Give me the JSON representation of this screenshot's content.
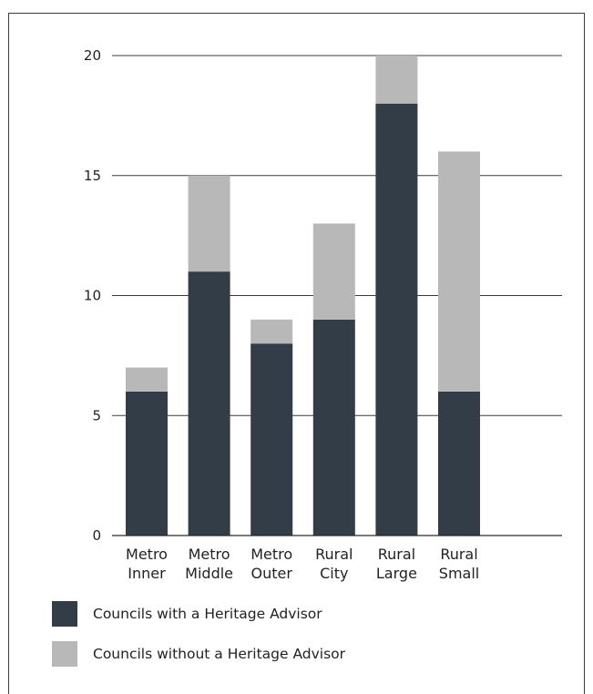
{
  "chart_data": {
    "type": "bar",
    "stacked": true,
    "categories": [
      "Metro Inner",
      "Metro Middle",
      "Metro Outer",
      "Rural City",
      "Rural Large",
      "Rural Small"
    ],
    "category_lines": [
      [
        "Metro",
        "Inner"
      ],
      [
        "Metro",
        "Middle"
      ],
      [
        "Metro",
        "Outer"
      ],
      [
        "Rural",
        "City"
      ],
      [
        "Rural",
        "Large"
      ],
      [
        "Rural",
        "Small"
      ]
    ],
    "series": [
      {
        "name": "Councils with a Heritage Advisor",
        "values": [
          6,
          11,
          8,
          9,
          18,
          6
        ],
        "color": "#323d47"
      },
      {
        "name": "Councils without a Heritage Advisor",
        "values": [
          1,
          4,
          1,
          4,
          2,
          10
        ],
        "color": "#b8b8b8"
      }
    ],
    "yticks": [
      "0",
      "5",
      "10",
      "15",
      "20"
    ],
    "ylim": [
      0,
      20
    ],
    "grid": true,
    "legend_position": "bottom-left",
    "title": "",
    "xlabel": "",
    "ylabel": ""
  }
}
